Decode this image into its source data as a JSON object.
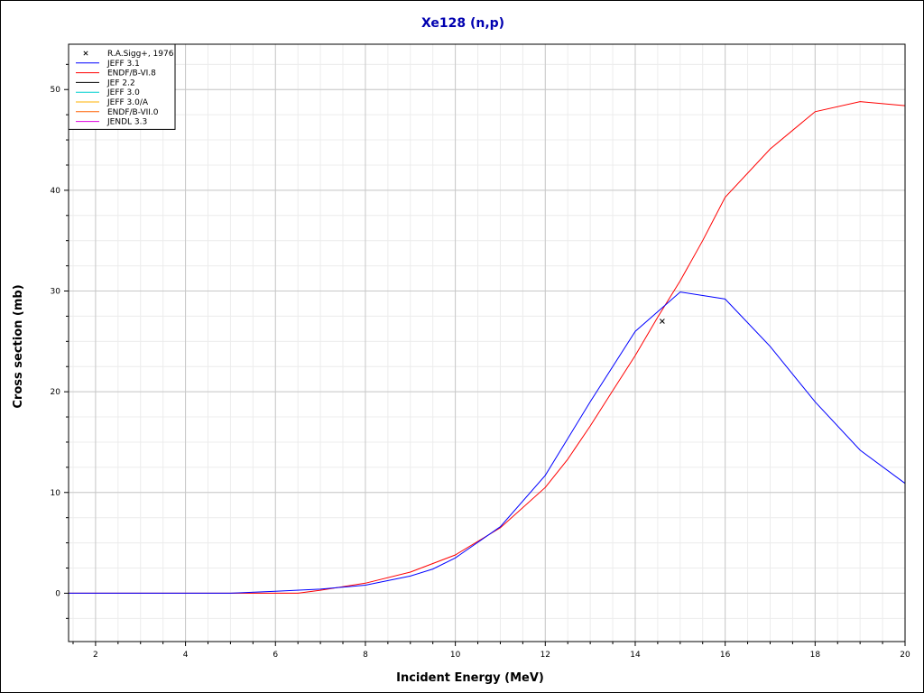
{
  "chart_data": {
    "type": "line",
    "title": "Xe128 (n,p)",
    "xlabel": "Incident Energy (MeV)",
    "ylabel": "Cross section (mb)",
    "xlim": [
      1.4,
      20
    ],
    "ylim": [
      -4.8,
      54.5
    ],
    "x_ticks": [
      2,
      4,
      6,
      8,
      10,
      12,
      14,
      16,
      18,
      20
    ],
    "x_minor_step": 0.5,
    "y_ticks": [
      0,
      10,
      20,
      30,
      40,
      50
    ],
    "y_minor_step": 2.5,
    "grid": true,
    "legend_position": "top-left",
    "legend": [
      {
        "label": "R.A.Sigg+, 1976",
        "color": "#000000",
        "marker": "x"
      },
      {
        "label": "JEFF 3.1",
        "color": "#0000ff"
      },
      {
        "label": "ENDF/B-VI.8",
        "color": "#ff0000"
      },
      {
        "label": "JEF 2.2",
        "color": "#000000"
      },
      {
        "label": "JEFF 3.0",
        "color": "#00d0d0"
      },
      {
        "label": "JEFF 3.0/A",
        "color": "#ffb000"
      },
      {
        "label": "ENDF/B-VII.0",
        "color": "#ff6000"
      },
      {
        "label": "JENDL 3.3",
        "color": "#e000e0"
      }
    ],
    "series": [
      {
        "name": "ENDF/B-VI.8",
        "color": "#ff0000",
        "x": [
          1.4,
          5,
          6,
          6.5,
          7,
          8,
          9,
          10,
          11,
          12,
          12.5,
          13,
          13.5,
          14,
          14.5,
          15,
          15.5,
          16,
          17,
          18,
          19,
          20
        ],
        "y": [
          0,
          0,
          0,
          0,
          0.3,
          1.0,
          2.1,
          3.8,
          6.5,
          10.5,
          13.3,
          16.6,
          20.1,
          23.6,
          27.4,
          31.0,
          35.0,
          39.3,
          44.1,
          47.8,
          48.8,
          48.4
        ]
      },
      {
        "name": "JEFF 3.1",
        "color": "#0000ff",
        "x": [
          1.4,
          5,
          6,
          7,
          8,
          9,
          9.5,
          10,
          11,
          12,
          13,
          14,
          15,
          16,
          17,
          18,
          19,
          20
        ],
        "y": [
          0,
          0,
          0.2,
          0.4,
          0.8,
          1.7,
          2.4,
          3.5,
          6.6,
          11.7,
          19.0,
          26.0,
          29.9,
          29.2,
          24.5,
          19.0,
          14.2,
          10.9
        ]
      }
    ],
    "points": [
      {
        "name": "R.A.Sigg+, 1976",
        "x": 14.6,
        "y": 27.0
      }
    ]
  }
}
